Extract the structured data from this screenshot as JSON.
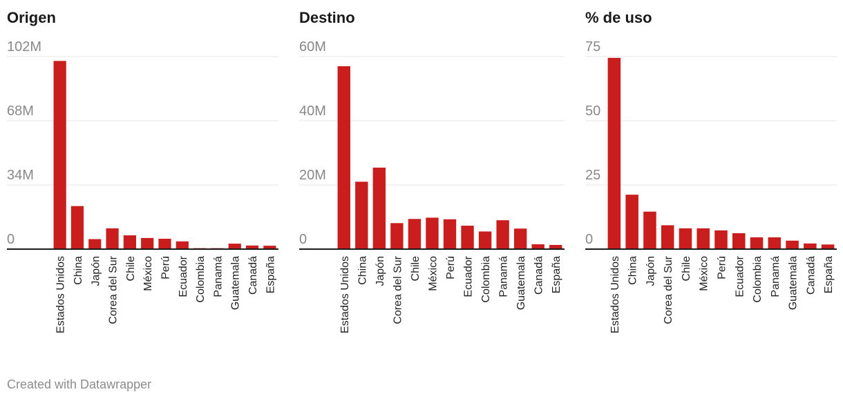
{
  "footer": "Created with Datawrapper",
  "colors": {
    "bar": "#c91d1e",
    "grid": "#e6e6e6",
    "axis": "#1a1a1a",
    "tick": "#888888"
  },
  "chart_data": [
    {
      "type": "bar",
      "title": "Origen",
      "categories": [
        "Estados Unidos",
        "China",
        "Japón",
        "Corea del Sur",
        "Chile",
        "México",
        "Perú",
        "Ecuador",
        "Colombia",
        "Panamá",
        "Guatemala",
        "Canadá",
        "España"
      ],
      "values": [
        99700000,
        22800000,
        5300000,
        11000000,
        7300000,
        5900000,
        5500000,
        4100000,
        500000,
        500000,
        2900000,
        1900000,
        1800000
      ],
      "ylim": [
        0,
        102000000
      ],
      "yticks": [
        0,
        34000000,
        68000000,
        102000000
      ],
      "ytick_labels": [
        "0",
        "34M",
        "68M",
        "102M"
      ],
      "grid": true
    },
    {
      "type": "bar",
      "title": "Destino",
      "categories": [
        "Estados Unidos",
        "China",
        "Japón",
        "Corea del Sur",
        "Chile",
        "México",
        "Perú",
        "Ecuador",
        "Colombia",
        "Panamá",
        "Guatemala",
        "Canadá",
        "España"
      ],
      "values": [
        57000000,
        21000000,
        25400000,
        8100000,
        9400000,
        9800000,
        9300000,
        7300000,
        5500000,
        9000000,
        6400000,
        1500000,
        1300000
      ],
      "ylim": [
        0,
        60000000
      ],
      "yticks": [
        0,
        20000000,
        40000000,
        60000000
      ],
      "ytick_labels": [
        "0",
        "20M",
        "40M",
        "60M"
      ],
      "grid": true
    },
    {
      "type": "bar",
      "title": "% de uso",
      "categories": [
        "Estados Unidos",
        "China",
        "Japón",
        "Corea del Sur",
        "Chile",
        "México",
        "Perú",
        "Ecuador",
        "Colombia",
        "Panamá",
        "Guatemala",
        "Canadá",
        "España"
      ],
      "values": [
        74.5,
        21.2,
        14.6,
        9.3,
        8.1,
        8.1,
        7.3,
        6.2,
        4.6,
        4.6,
        3.3,
        2.2,
        1.8
      ],
      "ylim": [
        0,
        75
      ],
      "yticks": [
        0,
        25,
        50,
        75
      ],
      "ytick_labels": [
        "0",
        "25",
        "50",
        "75"
      ],
      "grid": true
    }
  ]
}
